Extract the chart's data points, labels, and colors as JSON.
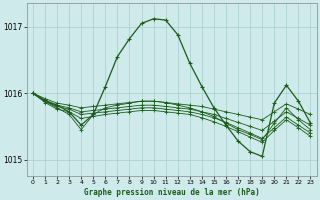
{
  "title": "Graphe pression niveau de la mer (hPa)",
  "bg_color": "#ceeaea",
  "grid_color": "#aacccc",
  "line_color": "#1a5c1a",
  "ylim": [
    1014.75,
    1017.35
  ],
  "xlim": [
    -0.5,
    23.5
  ],
  "yticks": [
    1015,
    1016,
    1017
  ],
  "xticks": [
    0,
    1,
    2,
    3,
    4,
    5,
    6,
    7,
    8,
    9,
    10,
    11,
    12,
    13,
    14,
    15,
    16,
    17,
    18,
    19,
    20,
    21,
    22,
    23
  ],
  "flat_series": [
    [
      1016.0,
      1015.92,
      1015.85,
      1015.82,
      1015.78,
      1015.8,
      1015.82,
      1015.84,
      1015.86,
      1015.88,
      1015.88,
      1015.86,
      1015.84,
      1015.82,
      1015.8,
      1015.76,
      1015.72,
      1015.68,
      1015.64,
      1015.6,
      1015.72,
      1015.84,
      1015.76,
      1015.68
    ],
    [
      1016.0,
      1015.9,
      1015.82,
      1015.78,
      1015.72,
      1015.74,
      1015.76,
      1015.78,
      1015.8,
      1015.82,
      1015.82,
      1015.8,
      1015.78,
      1015.76,
      1015.72,
      1015.68,
      1015.62,
      1015.56,
      1015.5,
      1015.44,
      1015.58,
      1015.72,
      1015.62,
      1015.52
    ],
    [
      1016.0,
      1015.88,
      1015.8,
      1015.76,
      1015.68,
      1015.7,
      1015.72,
      1015.74,
      1015.76,
      1015.78,
      1015.78,
      1015.76,
      1015.74,
      1015.72,
      1015.68,
      1015.63,
      1015.56,
      1015.48,
      1015.4,
      1015.32,
      1015.48,
      1015.64,
      1015.52,
      1015.4
    ],
    [
      1016.0,
      1015.86,
      1015.76,
      1015.72,
      1015.62,
      1015.65,
      1015.68,
      1015.7,
      1015.72,
      1015.74,
      1015.74,
      1015.72,
      1015.7,
      1015.68,
      1015.63,
      1015.57,
      1015.5,
      1015.42,
      1015.34,
      1015.26,
      1015.44,
      1015.6,
      1015.48,
      1015.35
    ]
  ],
  "main_series": [
    1016.0,
    1015.88,
    1015.82,
    1015.72,
    1015.52,
    1015.68,
    1016.1,
    1016.55,
    1016.82,
    1017.05,
    1017.12,
    1017.1,
    1016.88,
    1016.45,
    1016.1,
    1015.78,
    1015.52,
    1015.28,
    1015.12,
    1015.05,
    1015.85,
    1016.12,
    1015.88,
    1015.55
  ],
  "dip_series": [
    1016.0,
    1015.88,
    1015.78,
    1015.68,
    1015.45,
    1015.68,
    1015.78,
    1015.82,
    1015.85,
    1015.88,
    1015.88,
    1015.86,
    1015.82,
    1015.78,
    1015.72,
    1015.65,
    1015.55,
    1015.45,
    1015.38,
    1015.3,
    1015.55,
    1015.78,
    1015.6,
    1015.45
  ]
}
